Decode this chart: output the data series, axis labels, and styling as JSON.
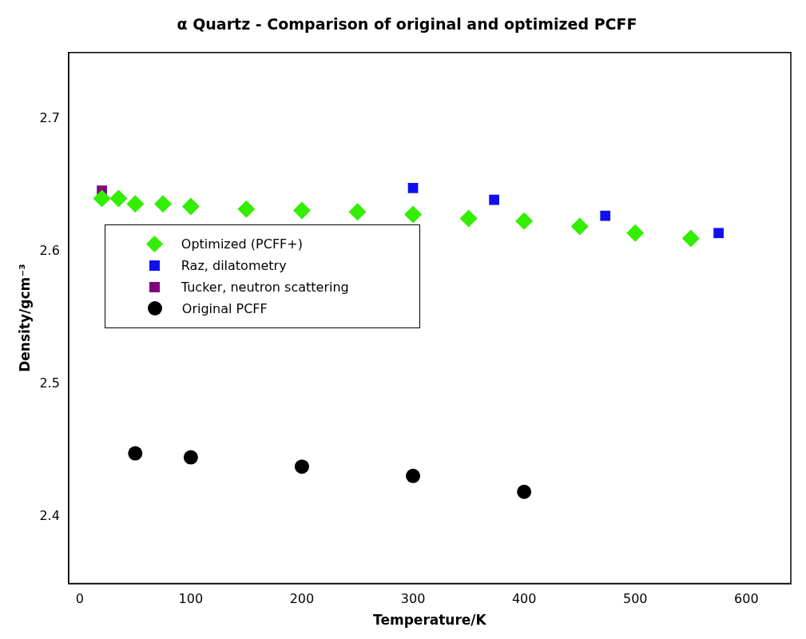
{
  "chart_data": {
    "type": "scatter",
    "title": "α Quartz - Comparison of original and optimized PCFF",
    "xlabel": "Temperature/K",
    "ylabel": "Density/gcm⁻³",
    "xlim": [
      -10,
      640
    ],
    "xticks": [
      0,
      100,
      200,
      300,
      400,
      500,
      600
    ],
    "ylim": [
      2.35,
      2.75
    ],
    "yticks": [
      2.4,
      2.5,
      2.6,
      2.7
    ],
    "grid": false,
    "legend": "left",
    "series": [
      {
        "name": "Optimized (PCFF+)",
        "color": "#33ee00",
        "marker": "diamond",
        "x": [
          20,
          35,
          50,
          75,
          100,
          150,
          200,
          250,
          300,
          350,
          400,
          450,
          500,
          550
        ],
        "values": [
          2.64,
          2.64,
          2.636,
          2.636,
          2.634,
          2.632,
          2.631,
          2.63,
          2.628,
          2.625,
          2.623,
          2.619,
          2.614,
          2.61
        ]
      },
      {
        "name": "Raz, dilatometry",
        "color": "#1010ee",
        "marker": "square",
        "x": [
          300,
          373,
          473,
          575
        ],
        "values": [
          2.648,
          2.639,
          2.627,
          2.614
        ]
      },
      {
        "name": "Tucker, neutron scattering",
        "color": "#800080",
        "marker": "square",
        "x": [
          20
        ],
        "values": [
          2.646
        ]
      },
      {
        "name": "Original PCFF",
        "color": "#000000",
        "marker": "circle",
        "x": [
          50,
          100,
          200,
          300,
          400
        ],
        "values": [
          2.448,
          2.445,
          2.438,
          2.431,
          2.419
        ]
      }
    ]
  }
}
